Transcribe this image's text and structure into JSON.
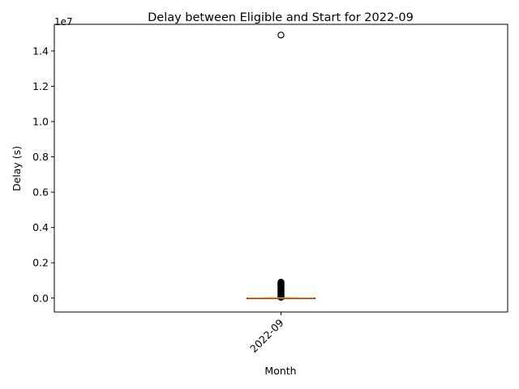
{
  "chart_data": {
    "type": "box",
    "title": "Delay between Eligible and Start for 2022-09",
    "xlabel": "Month",
    "ylabel": "Delay (s)",
    "y_offset_label": "1e7",
    "y_scale": 10000000,
    "ylim": [
      -0.079,
      1.551
    ],
    "yticks": [
      0.0,
      0.2,
      0.4,
      0.6,
      0.8,
      1.0,
      1.2,
      1.4
    ],
    "ytick_labels": [
      "0.0",
      "0.2",
      "0.4",
      "0.6",
      "0.8",
      "1.0",
      "1.2",
      "1.4"
    ],
    "categories": [
      "2022-09"
    ],
    "boxes": [
      {
        "category": "2022-09",
        "q1": 0.0,
        "median": 0.0,
        "q3": 0.001,
        "whisker_low": 0.0,
        "whisker_high": 0.002,
        "fliers": [
          1.49,
          0.09,
          0.088,
          0.085,
          0.082,
          0.079,
          0.076,
          0.073,
          0.07,
          0.067,
          0.064,
          0.061,
          0.058,
          0.055,
          0.052,
          0.049,
          0.046,
          0.043,
          0.04,
          0.037,
          0.034,
          0.031,
          0.028,
          0.025,
          0.022,
          0.019,
          0.016,
          0.013,
          0.01,
          0.007,
          0.004
        ]
      }
    ],
    "colors": {
      "median": "#f28e2b",
      "box": "#000000",
      "flier": "#000000"
    }
  }
}
